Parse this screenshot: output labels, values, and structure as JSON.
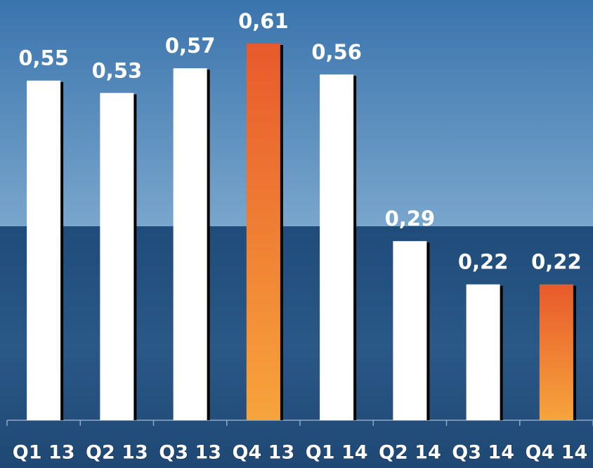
{
  "chart_data": {
    "type": "bar",
    "categories": [
      "Q1 13",
      "Q2 13",
      "Q3 13",
      "Q4 13",
      "Q1 14",
      "Q2 14",
      "Q3 14",
      "Q4 14"
    ],
    "values": [
      0.55,
      0.53,
      0.57,
      0.61,
      0.56,
      0.29,
      0.22,
      0.22
    ],
    "value_labels": [
      "0,55",
      "0,53",
      "0,57",
      "0,61",
      "0,56",
      "0,29",
      "0,22",
      "0,22"
    ],
    "colors": [
      "#ffffff",
      "#ffffff",
      "#ffffff",
      "#e85a2c",
      "#ffffff",
      "#ffffff",
      "#ffffff",
      "#e85a2c"
    ]
  }
}
